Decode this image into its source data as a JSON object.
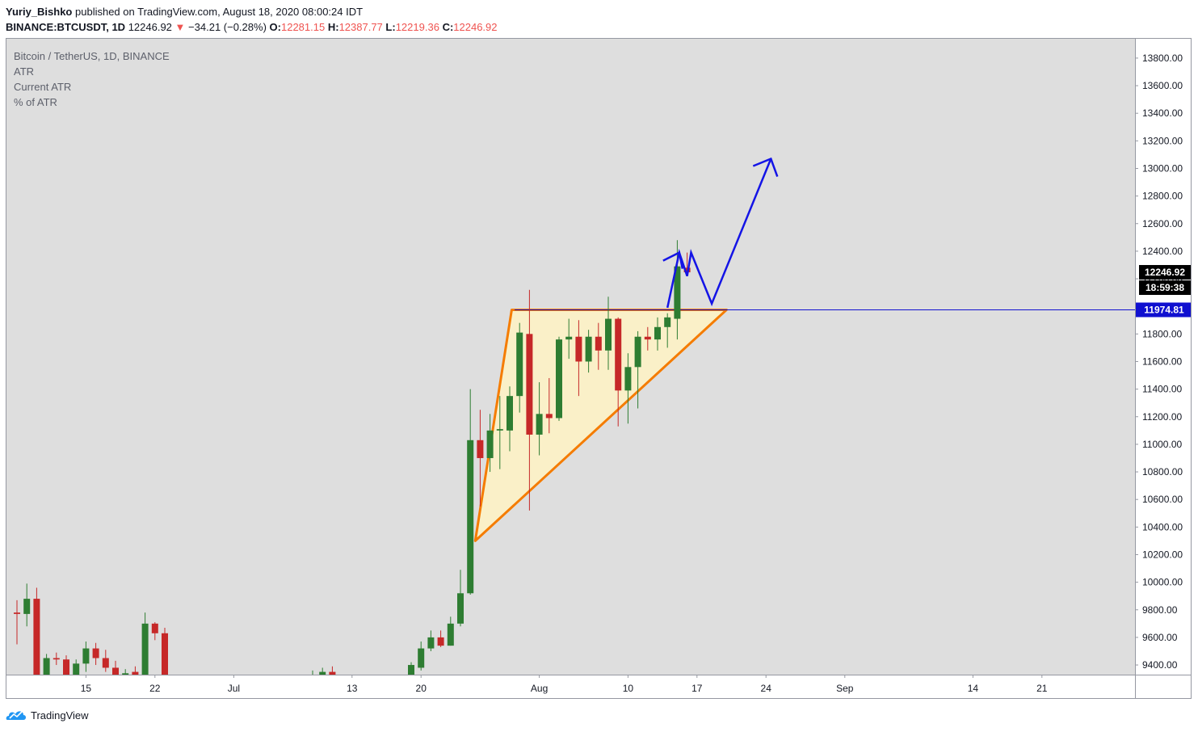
{
  "header": {
    "author": "Yuriy_Bishko",
    "published_text": "published on TradingView.com, August 18, 2020 08:00:24 IDT",
    "symbol": "BINANCE:BTCUSDT, 1D",
    "last": "12246.92",
    "change": "−3 4.21",
    "change_fmt": "−34.21 (−0.28%)",
    "o_label": "O:",
    "o_value": "12281.15",
    "h_label": "H:",
    "h_value": "12387.77",
    "l_label": "L:",
    "l_value": "12219.36",
    "c_label": "C:",
    "c_value": "12246.92"
  },
  "legend": {
    "line1": "Bitcoin / TetherUS, 1D, BINANCE",
    "line2": "ATR",
    "line3": "Current ATR",
    "line4": "% of ATR"
  },
  "footer": {
    "brand": "TradingView"
  },
  "colors": {
    "up": "#2e7d32",
    "down": "#c62828",
    "background": "#dedede",
    "triangle_stroke": "#f57c00",
    "triangle_fill": "#fff3c4",
    "arrow": "#1414e6",
    "price_line": "#1010d0"
  },
  "chart_data": {
    "type": "candlestick",
    "ylim": [
      9330,
      13940
    ],
    "y_ticks": [
      9400,
      9600,
      9800,
      10000,
      10200,
      10400,
      10600,
      10800,
      11000,
      11200,
      11400,
      11600,
      11800,
      12000,
      12200,
      12400,
      12600,
      12800,
      13000,
      13200,
      13400,
      13600,
      13800
    ],
    "x_ticks": [
      {
        "label": "15",
        "day": 15
      },
      {
        "label": "22",
        "day": 22
      },
      {
        "label": "Jul",
        "day": 30
      },
      {
        "label": "13",
        "day": 42
      },
      {
        "label": "20",
        "day": 49
      },
      {
        "label": "Aug",
        "day": 61
      },
      {
        "label": "10",
        "day": 70
      },
      {
        "label": "17",
        "day": 77
      },
      {
        "label": "24",
        "day": 84
      },
      {
        "label": "Sep",
        "day": 92
      },
      {
        "label": "14",
        "day": 105
      },
      {
        "label": "21",
        "day": 112
      }
    ],
    "candles": [
      {
        "day": 8,
        "o": 9780,
        "h": 9870,
        "l": 9550,
        "c": 9770
      },
      {
        "day": 9,
        "o": 9770,
        "h": 9990,
        "l": 9680,
        "c": 9880
      },
      {
        "day": 10,
        "o": 9880,
        "h": 9960,
        "l": 9300,
        "c": 9320
      },
      {
        "day": 11,
        "o": 9320,
        "h": 9480,
        "l": 9300,
        "c": 9450
      },
      {
        "day": 12,
        "o": 9450,
        "h": 9490,
        "l": 9400,
        "c": 9440
      },
      {
        "day": 13,
        "o": 9440,
        "h": 9470,
        "l": 9300,
        "c": 9320
      },
      {
        "day": 14,
        "o": 9320,
        "h": 9440,
        "l": 9300,
        "c": 9410
      },
      {
        "day": 15,
        "o": 9410,
        "h": 9570,
        "l": 9350,
        "c": 9520
      },
      {
        "day": 16,
        "o": 9520,
        "h": 9560,
        "l": 9400,
        "c": 9450
      },
      {
        "day": 17,
        "o": 9450,
        "h": 9510,
        "l": 9350,
        "c": 9380
      },
      {
        "day": 18,
        "o": 9380,
        "h": 9430,
        "l": 9310,
        "c": 9330
      },
      {
        "day": 19,
        "o": 9320,
        "h": 9370,
        "l": 9300,
        "c": 9340
      },
      {
        "day": 20,
        "o": 9350,
        "h": 9390,
        "l": 9280,
        "c": 9310
      },
      {
        "day": 21,
        "o": 9310,
        "h": 9780,
        "l": 9290,
        "c": 9700
      },
      {
        "day": 22,
        "o": 9700,
        "h": 9710,
        "l": 9580,
        "c": 9630
      },
      {
        "day": 23,
        "o": 9630,
        "h": 9670,
        "l": 9310,
        "c": 9320
      },
      {
        "day": 38,
        "o": 9310,
        "h": 9360,
        "l": 9290,
        "c": 9330
      },
      {
        "day": 39,
        "o": 9330,
        "h": 9380,
        "l": 9300,
        "c": 9350
      },
      {
        "day": 40,
        "o": 9350,
        "h": 9390,
        "l": 9310,
        "c": 9320
      },
      {
        "day": 48,
        "o": 9330,
        "h": 9420,
        "l": 9310,
        "c": 9400
      },
      {
        "day": 49,
        "o": 9380,
        "h": 9570,
        "l": 9360,
        "c": 9520
      },
      {
        "day": 50,
        "o": 9520,
        "h": 9650,
        "l": 9500,
        "c": 9600
      },
      {
        "day": 51,
        "o": 9600,
        "h": 9650,
        "l": 9530,
        "c": 9540
      },
      {
        "day": 52,
        "o": 9540,
        "h": 9750,
        "l": 9540,
        "c": 9700
      },
      {
        "day": 53,
        "o": 9700,
        "h": 10090,
        "l": 9680,
        "c": 9920
      },
      {
        "day": 54,
        "o": 9920,
        "h": 11400,
        "l": 9910,
        "c": 11030
      },
      {
        "day": 55,
        "o": 11030,
        "h": 11250,
        "l": 10550,
        "c": 10900
      },
      {
        "day": 56,
        "o": 10900,
        "h": 11220,
        "l": 10800,
        "c": 11100
      },
      {
        "day": 57,
        "o": 11100,
        "h": 11350,
        "l": 10820,
        "c": 11110
      },
      {
        "day": 58,
        "o": 11100,
        "h": 11420,
        "l": 10950,
        "c": 11350
      },
      {
        "day": 59,
        "o": 11350,
        "h": 11880,
        "l": 11230,
        "c": 11810
      },
      {
        "day": 60,
        "o": 11800,
        "h": 12120,
        "l": 10520,
        "c": 11070
      },
      {
        "day": 61,
        "o": 11070,
        "h": 11450,
        "l": 10920,
        "c": 11220
      },
      {
        "day": 62,
        "o": 11220,
        "h": 11480,
        "l": 11080,
        "c": 11190
      },
      {
        "day": 63,
        "o": 11190,
        "h": 11780,
        "l": 11170,
        "c": 11760
      },
      {
        "day": 64,
        "o": 11760,
        "h": 11910,
        "l": 11620,
        "c": 11780
      },
      {
        "day": 65,
        "o": 11780,
        "h": 11900,
        "l": 11350,
        "c": 11600
      },
      {
        "day": 66,
        "o": 11600,
        "h": 11830,
        "l": 11520,
        "c": 11780
      },
      {
        "day": 67,
        "o": 11780,
        "h": 11880,
        "l": 11540,
        "c": 11680
      },
      {
        "day": 68,
        "o": 11680,
        "h": 12070,
        "l": 11540,
        "c": 11910
      },
      {
        "day": 69,
        "o": 11910,
        "h": 11920,
        "l": 11130,
        "c": 11390
      },
      {
        "day": 70,
        "o": 11390,
        "h": 11660,
        "l": 11150,
        "c": 11560
      },
      {
        "day": 71,
        "o": 11560,
        "h": 11820,
        "l": 11260,
        "c": 11780
      },
      {
        "day": 72,
        "o": 11780,
        "h": 11850,
        "l": 11680,
        "c": 11760
      },
      {
        "day": 73,
        "o": 11760,
        "h": 11920,
        "l": 11680,
        "c": 11850
      },
      {
        "day": 74,
        "o": 11850,
        "h": 11950,
        "l": 11700,
        "c": 11920
      },
      {
        "day": 75,
        "o": 11910,
        "h": 12480,
        "l": 11760,
        "c": 12290
      },
      {
        "day": 76,
        "o": 12280,
        "h": 12390,
        "l": 12220,
        "c": 12247
      }
    ],
    "pattern_triangle": [
      {
        "day": 54.5,
        "y": 10300
      },
      {
        "day": 58.2,
        "y": 11975
      },
      {
        "day": 80,
        "y": 11975
      }
    ],
    "projection_path": [
      {
        "day": 74,
        "y": 11990
      },
      {
        "day": 75.2,
        "y": 12390
      },
      {
        "day": 76.0,
        "y": 12220
      },
      {
        "day": 76.4,
        "y": 12390
      },
      {
        "day": 78.5,
        "y": 12020
      },
      {
        "day": 84.5,
        "y": 13070
      }
    ],
    "horizontal_line": 11974.81,
    "price_labels": {
      "last_price": "12246.92",
      "countdown": "18:59:38",
      "line_price": "11974.81"
    }
  }
}
